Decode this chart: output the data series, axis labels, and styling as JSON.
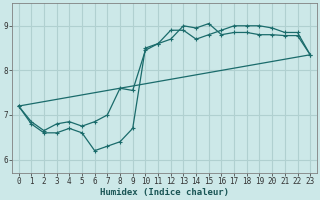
{
  "xlabel": "Humidex (Indice chaleur)",
  "bg_color": "#cce8e8",
  "grid_color": "#b0d0d0",
  "line_color": "#1a6b6b",
  "ylim": [
    5.7,
    9.5
  ],
  "xlim": [
    -0.5,
    23.5
  ],
  "yticks": [
    6,
    7,
    8,
    9
  ],
  "xticks": [
    0,
    1,
    2,
    3,
    4,
    5,
    6,
    7,
    8,
    9,
    10,
    11,
    12,
    13,
    14,
    15,
    16,
    17,
    18,
    19,
    20,
    21,
    22,
    23
  ],
  "curve1_x": [
    0,
    1,
    2,
    3,
    4,
    5,
    6,
    7,
    8,
    9,
    10,
    11,
    12,
    13,
    14,
    15,
    16,
    17,
    18,
    19,
    20,
    21,
    22,
    23
  ],
  "curve1_y": [
    7.2,
    6.8,
    6.6,
    6.6,
    6.7,
    6.6,
    6.2,
    6.3,
    6.4,
    6.7,
    8.5,
    8.6,
    8.9,
    8.9,
    8.7,
    8.8,
    8.9,
    9.0,
    9.0,
    9.0,
    8.95,
    8.85,
    8.85,
    8.35
  ],
  "curve2_x": [
    0,
    1,
    2,
    3,
    4,
    5,
    6,
    7,
    8,
    9,
    10,
    11,
    12,
    13,
    14,
    15,
    16,
    17,
    18,
    19,
    20,
    21,
    22,
    23
  ],
  "curve2_y": [
    7.2,
    6.85,
    6.65,
    6.8,
    6.85,
    6.75,
    6.85,
    7.0,
    7.6,
    7.55,
    8.45,
    8.6,
    8.7,
    9.0,
    8.95,
    9.05,
    8.8,
    8.85,
    8.85,
    8.8,
    8.8,
    8.78,
    8.78,
    8.35
  ],
  "curve3_x": [
    0,
    23
  ],
  "curve3_y": [
    7.2,
    8.35
  ]
}
